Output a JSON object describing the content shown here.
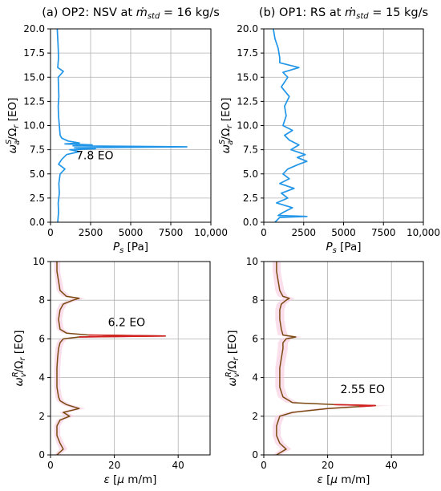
{
  "chart_data": [
    {
      "type": "line",
      "title": "(a) OP2: NSV at ṁstd = 16 kg/s",
      "title_parts": {
        "prefix": "(a) OP2: NSV at ",
        "symbol": "ṁ",
        "subscript": "std",
        "suffix": " = 16 kg/s"
      },
      "xlabel": "P_s [Pa]",
      "xlabel_parts": {
        "symbol": "P",
        "subscript": "s",
        "unit": " [Pa]"
      },
      "ylabel": "ω_a^S/Ω_r [EO]",
      "ylabel_parts": {
        "w": "ω",
        "sub": "a",
        "sup": "S",
        "rest": "/Ω",
        "rsub": "r",
        "unit": " [EO]"
      },
      "xlim": [
        0,
        10000
      ],
      "ylim": [
        0,
        20
      ],
      "xticks": [
        0,
        2500,
        5000,
        7500,
        10000
      ],
      "xtick_labels": [
        "0",
        "2500",
        "5000",
        "7500",
        "10,000"
      ],
      "yticks": [
        0,
        2.5,
        5,
        7.5,
        10,
        12.5,
        15,
        17.5,
        20
      ],
      "ytick_labels": [
        "0.0",
        "2.5",
        "5.0",
        "7.5",
        "10.0",
        "12.5",
        "15.0",
        "17.5",
        "20.0"
      ],
      "grid": true,
      "orientation": "horizontal-profile",
      "color": "#2196e8",
      "annotation": {
        "text": "7.8 EO",
        "x": 1600,
        "y": 6.5
      },
      "series": [
        {
          "y": [
            0,
            1,
            2,
            3,
            4,
            5,
            5.5,
            6,
            6.5,
            7,
            7.3,
            7.5,
            7.6,
            7.7,
            7.8,
            7.9,
            8.0,
            8.1,
            8.2,
            8.4,
            8.7,
            9,
            10,
            11,
            12,
            13,
            14,
            15,
            15.6,
            16,
            17,
            18,
            19,
            20
          ],
          "x": [
            450,
            500,
            480,
            550,
            520,
            600,
            900,
            500,
            700,
            1000,
            1800,
            1200,
            2800,
            1500,
            8500,
            1400,
            2600,
            900,
            1800,
            1100,
            700,
            600,
            550,
            500,
            480,
            520,
            500,
            480,
            800,
            450,
            500,
            480,
            450,
            420
          ]
        }
      ]
    },
    {
      "type": "line",
      "title": "(b) OP1: RS at ṁstd = 15 kg/s",
      "title_parts": {
        "prefix": "(b) OP1: RS at ",
        "symbol": "ṁ",
        "subscript": "std",
        "suffix": " = 15 kg/s"
      },
      "xlabel": "P_s [Pa]",
      "xlabel_parts": {
        "symbol": "P",
        "subscript": "s",
        "unit": " [Pa]"
      },
      "ylabel": "ω_a^S/Ω_r [EO]",
      "ylabel_parts": {
        "w": "ω",
        "sub": "a",
        "sup": "S",
        "rest": "/Ω",
        "rsub": "r",
        "unit": " [EO]"
      },
      "xlim": [
        0,
        10000
      ],
      "ylim": [
        0,
        20
      ],
      "xticks": [
        0,
        2500,
        5000,
        7500,
        10000
      ],
      "xtick_labels": [
        "0",
        "2500",
        "5000",
        "7500",
        "10,000"
      ],
      "yticks": [
        0,
        2.5,
        5,
        7.5,
        10,
        12.5,
        15,
        17.5,
        20
      ],
      "ytick_labels": [
        "0.0",
        "2.5",
        "5.0",
        "7.5",
        "10.0",
        "12.5",
        "15.0",
        "17.5",
        "20.0"
      ],
      "grid": true,
      "orientation": "horizontal-profile",
      "color": "#2196e8",
      "series": [
        {
          "y": [
            0,
            0.5,
            0.6,
            0.7,
            1,
            1.5,
            2,
            2.5,
            3,
            3.5,
            4,
            4.5,
            5,
            5.5,
            6,
            6.3,
            6.7,
            7,
            7.5,
            8,
            8.5,
            9,
            9.5,
            10,
            11,
            12,
            13,
            14,
            15,
            15.5,
            16,
            16.5,
            17,
            18,
            19,
            20
          ],
          "x": [
            700,
            1000,
            2700,
            900,
            1200,
            1800,
            800,
            1500,
            1100,
            1900,
            1000,
            1600,
            1200,
            1500,
            2200,
            2700,
            2100,
            2600,
            1700,
            2200,
            1600,
            1300,
            1800,
            1200,
            1400,
            1300,
            1600,
            1100,
            1500,
            1200,
            2200,
            1000,
            1000,
            900,
            700,
            600
          ]
        }
      ]
    },
    {
      "type": "line",
      "xlabel": "ε [μ m/m]",
      "xlabel_parts": {
        "symbol": "ε",
        "unit_open": " [",
        "mu": "μ",
        "unit_rest": " m/m]"
      },
      "ylabel": "ω_v^R/Ω_r [EO]",
      "ylabel_parts": {
        "w": "ω",
        "sub": "v",
        "sup": "R",
        "rest": "/Ω",
        "rsub": "r",
        "unit": " [EO]"
      },
      "xlim": [
        0,
        50
      ],
      "ylim": [
        0,
        10
      ],
      "xticks": [
        0,
        20,
        40
      ],
      "xtick_labels": [
        "0",
        "20",
        "40"
      ],
      "yticks": [
        0,
        2,
        4,
        6,
        8,
        10
      ],
      "ytick_labels": [
        "0",
        "2",
        "4",
        "6",
        "8",
        "10"
      ],
      "grid": true,
      "orientation": "horizontal-profile",
      "color": "#7a4a10",
      "peak_color": "#d32020",
      "band_color": "#f8c8e0",
      "annotation": {
        "text": "6.2 EO",
        "x": 18,
        "y": 6.65
      },
      "series": [
        {
          "y": [
            0,
            0.3,
            0.6,
            1,
            1.5,
            1.8,
            2.0,
            2.2,
            2.4,
            2.6,
            2.8,
            3.0,
            3.5,
            4,
            4.5,
            5,
            5.5,
            5.8,
            6.0,
            6.1,
            6.15,
            6.2,
            6.3,
            6.5,
            7.0,
            7.5,
            7.8,
            8.0,
            8.1,
            8.2,
            8.5,
            9,
            9.5,
            10
          ],
          "x": [
            2,
            4,
            3,
            2,
            2,
            3,
            6,
            4,
            9,
            5,
            3,
            2.5,
            2,
            2,
            2,
            2.2,
            2.5,
            3,
            4,
            9,
            36,
            12,
            5,
            3,
            2.5,
            3,
            4,
            7,
            9,
            5,
            3,
            2.5,
            2,
            2
          ]
        }
      ]
    },
    {
      "type": "line",
      "xlabel": "ε [μ m/m]",
      "xlabel_parts": {
        "symbol": "ε",
        "unit_open": " [",
        "mu": "μ",
        "unit_rest": " m/m]"
      },
      "ylabel": "ω_v^R/Ω_r [EO]",
      "ylabel_parts": {
        "w": "ω",
        "sub": "v",
        "sup": "R",
        "rest": "/Ω",
        "rsub": "r",
        "unit": " [EO]"
      },
      "xlim": [
        0,
        50
      ],
      "ylim": [
        0,
        10
      ],
      "xticks": [
        0,
        20,
        40
      ],
      "xtick_labels": [
        "0",
        "20",
        "40"
      ],
      "yticks": [
        0,
        2,
        4,
        6,
        8,
        10
      ],
      "ytick_labels": [
        "0",
        "2",
        "4",
        "6",
        "8",
        "10"
      ],
      "grid": true,
      "orientation": "horizontal-profile",
      "color": "#7a4a10",
      "peak_color": "#d32020",
      "band_color": "#f8c8e0",
      "annotation": {
        "text": "2.55 EO",
        "x": 24,
        "y": 3.2
      },
      "series": [
        {
          "y": [
            0,
            0.3,
            0.6,
            1,
            1.5,
            2.0,
            2.2,
            2.4,
            2.5,
            2.55,
            2.6,
            2.7,
            3.0,
            3.5,
            4,
            4.5,
            5,
            5.5,
            5.8,
            6.0,
            6.1,
            6.2,
            6.5,
            7.0,
            7.5,
            7.8,
            8.0,
            8.1,
            8.2,
            8.5,
            9,
            9.5,
            10
          ],
          "x": [
            4,
            7,
            5,
            4,
            4,
            5,
            9,
            20,
            30,
            35,
            22,
            9,
            6,
            5,
            5,
            5,
            5.5,
            6,
            6,
            7,
            10,
            6,
            5.5,
            5,
            5,
            5.5,
            7,
            8,
            6,
            5,
            4.5,
            4,
            4
          ]
        }
      ]
    }
  ]
}
